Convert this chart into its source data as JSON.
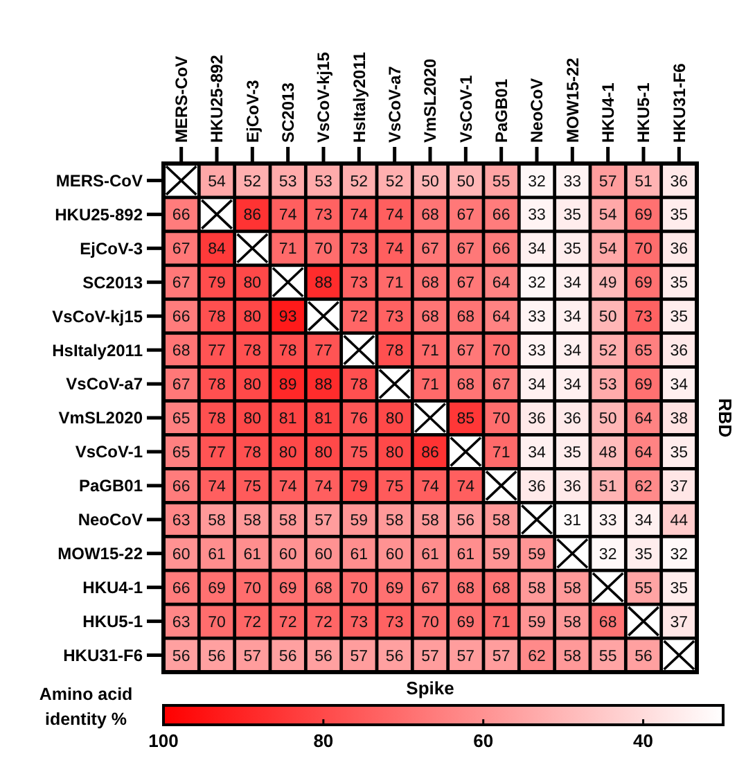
{
  "chart_data": {
    "type": "heatmap",
    "xlabel": "Spike",
    "y2label": "RBD",
    "clabel": "Amino acid identity %",
    "categories": [
      "MERS-CoV",
      "HKU25-892",
      "EjCoV-3",
      "SC2013",
      "VsCoV-kj15",
      "HsItaly2011",
      "VsCoV-a7",
      "VmSL2020",
      "VsCoV-1",
      "PaGB01",
      "NeoCoV",
      "MOW15-22",
      "HKU4-1",
      "HKU5-1",
      "HKU31-F6"
    ],
    "y_categories": [
      "MERS-CoV",
      "HKU25-892",
      "EjCoV-3",
      "SC2013",
      "VsCoV-kj15",
      "HsItaly2011",
      "VsCoV-a7",
      "VmSL2020",
      "VsCoV-1",
      "PaGB01",
      "NeoCoV",
      "MOW15-22",
      "HKU4-1",
      "HKU5-1",
      "HKU31-F6"
    ],
    "cells": [
      [
        null,
        54,
        52,
        53,
        53,
        52,
        52,
        50,
        50,
        55,
        32,
        33,
        57,
        51,
        36
      ],
      [
        66,
        null,
        86,
        74,
        73,
        74,
        74,
        68,
        67,
        66,
        33,
        35,
        54,
        69,
        35
      ],
      [
        67,
        84,
        null,
        71,
        70,
        73,
        74,
        67,
        67,
        66,
        34,
        35,
        54,
        70,
        36
      ],
      [
        67,
        79,
        80,
        null,
        88,
        73,
        71,
        68,
        67,
        64,
        32,
        34,
        49,
        69,
        35
      ],
      [
        66,
        78,
        80,
        93,
        null,
        72,
        73,
        68,
        68,
        64,
        33,
        34,
        50,
        73,
        35
      ],
      [
        68,
        77,
        78,
        78,
        77,
        null,
        78,
        71,
        67,
        70,
        33,
        34,
        52,
        65,
        36
      ],
      [
        67,
        78,
        80,
        89,
        88,
        78,
        null,
        71,
        68,
        67,
        34,
        34,
        53,
        69,
        34
      ],
      [
        65,
        78,
        80,
        81,
        81,
        76,
        80,
        null,
        85,
        70,
        36,
        36,
        50,
        64,
        38
      ],
      [
        65,
        77,
        78,
        80,
        80,
        75,
        80,
        86,
        null,
        71,
        34,
        35,
        48,
        64,
        35
      ],
      [
        66,
        74,
        75,
        74,
        74,
        79,
        75,
        74,
        74,
        null,
        36,
        36,
        51,
        62,
        37
      ],
      [
        63,
        58,
        58,
        58,
        57,
        59,
        58,
        58,
        56,
        58,
        null,
        31,
        33,
        34,
        44
      ],
      [
        60,
        61,
        61,
        60,
        60,
        61,
        60,
        61,
        61,
        59,
        59,
        null,
        32,
        35,
        32
      ],
      [
        66,
        69,
        70,
        69,
        68,
        70,
        69,
        67,
        68,
        68,
        58,
        58,
        null,
        55,
        35
      ],
      [
        63,
        70,
        72,
        72,
        72,
        73,
        73,
        70,
        69,
        71,
        59,
        58,
        68,
        null,
        37
      ],
      [
        56,
        56,
        57,
        56,
        56,
        57,
        56,
        57,
        57,
        57,
        62,
        58,
        55,
        56,
        null
      ]
    ],
    "data_labels": true,
    "clim": [
      100,
      30
    ],
    "cticks": [
      100,
      80,
      60,
      40
    ]
  }
}
